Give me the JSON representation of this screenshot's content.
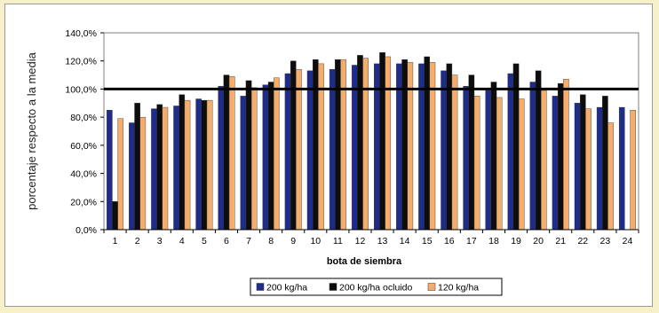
{
  "chart_data": {
    "type": "bar",
    "title": "",
    "xlabel": "bota de siembra",
    "ylabel": "porcentaje respecto a la media",
    "ylim": [
      0,
      140
    ],
    "yticks": [
      "0,0%",
      "20,0%",
      "40,0%",
      "60,0%",
      "80,0%",
      "100,0%",
      "120,0%",
      "140,0%"
    ],
    "reference_line": 100,
    "grid": false,
    "legend_position": "bottom",
    "categories": [
      "1",
      "2",
      "3",
      "4",
      "5",
      "6",
      "7",
      "8",
      "9",
      "10",
      "11",
      "12",
      "13",
      "14",
      "15",
      "16",
      "17",
      "18",
      "19",
      "20",
      "21",
      "22",
      "23",
      "24"
    ],
    "series": [
      {
        "name": "200 kg/ha",
        "color": "#1f2d8a",
        "values": [
          85,
          76,
          86,
          88,
          93,
          102,
          95,
          103,
          111,
          113,
          114,
          117,
          118,
          118,
          118,
          113,
          102,
          99,
          111,
          105,
          95,
          90,
          87,
          87
        ]
      },
      {
        "name": "200 kg/ha ocluido",
        "color": "#0d0d0d",
        "values": [
          20,
          90,
          89,
          96,
          92,
          110,
          106,
          105,
          120,
          121,
          121,
          124,
          126,
          121,
          123,
          118,
          110,
          105,
          118,
          113,
          104,
          96,
          95,
          null
        ]
      },
      {
        "name": "120 kg/ha",
        "color": "#f5ad6e",
        "values": [
          79,
          80,
          87,
          92,
          92,
          109,
          101,
          108,
          114,
          118,
          121,
          122,
          123,
          119,
          119,
          110,
          95,
          94,
          93,
          99,
          107,
          86,
          76,
          85
        ]
      }
    ]
  }
}
